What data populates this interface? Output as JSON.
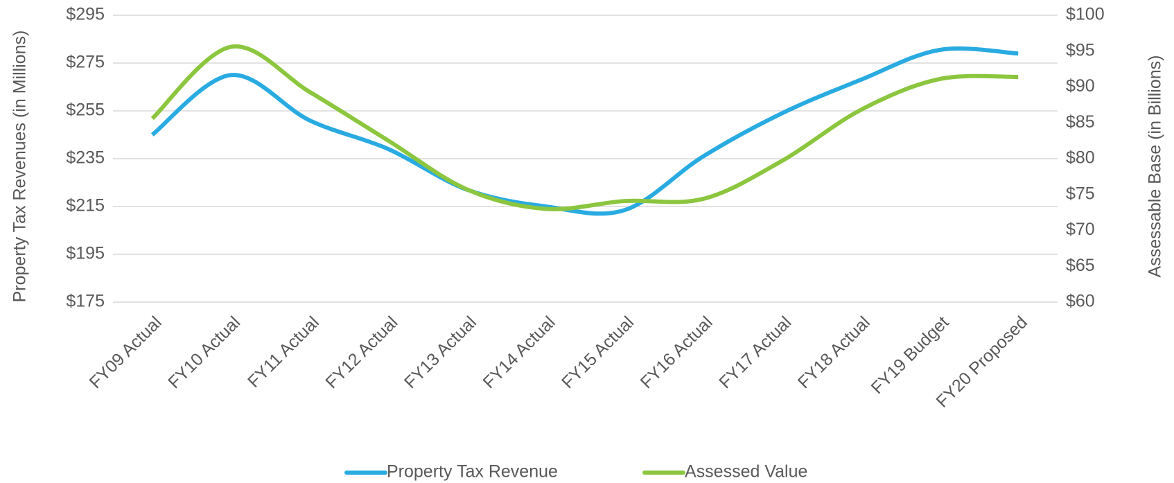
{
  "chart_data": {
    "type": "line",
    "y_label": "Property Tax Revenues (in Millions)",
    "y2_label": "Assessable Base (in Billions)",
    "categories": [
      "FY09 Actual",
      "FY10 Actual",
      "FY11 Actual",
      "FY12 Actual",
      "FY13 Actual",
      "FY14 Actual",
      "FY15 Actual",
      "FY16 Actual",
      "FY17 Actual",
      "FY18 Actual",
      "FY19 Budget",
      "FY20 Proposed"
    ],
    "series": [
      {
        "name": "Property Tax Revenue",
        "color": "#29abe2",
        "values": [
          245,
          270,
          251,
          239,
          222,
          215,
          213.5,
          236,
          254,
          268,
          280.5,
          279
        ]
      },
      {
        "name": "Assessed Value",
        "color": "#8cc63f",
        "axis": "y2",
        "values": [
          85.6,
          95.6,
          89.3,
          82.5,
          75.7,
          73,
          74.1,
          74.4,
          79.7,
          86.8,
          91.1,
          91.4
        ]
      }
    ],
    "ylim": [
      175,
      295
    ],
    "yticks": [
      {
        "value": 175,
        "label": "$175"
      },
      {
        "value": 195,
        "label": "$195"
      },
      {
        "value": 215,
        "label": "$215"
      },
      {
        "value": 235,
        "label": "$235"
      },
      {
        "value": 255,
        "label": "$255"
      },
      {
        "value": 275,
        "label": "$275"
      },
      {
        "value": 295,
        "label": "$295"
      }
    ],
    "y2lim": [
      60,
      100
    ],
    "y2ticks": [
      {
        "value": 60,
        "label": "$60"
      },
      {
        "value": 65,
        "label": "$65"
      },
      {
        "value": 70,
        "label": "$70"
      },
      {
        "value": 75,
        "label": "$75"
      },
      {
        "value": 80,
        "label": "$80"
      },
      {
        "value": 85,
        "label": "$85"
      },
      {
        "value": 90,
        "label": "$90"
      },
      {
        "value": 95,
        "label": "$95"
      },
      {
        "value": 100,
        "label": "$100"
      }
    ],
    "grid": true,
    "legend": "bottom"
  }
}
